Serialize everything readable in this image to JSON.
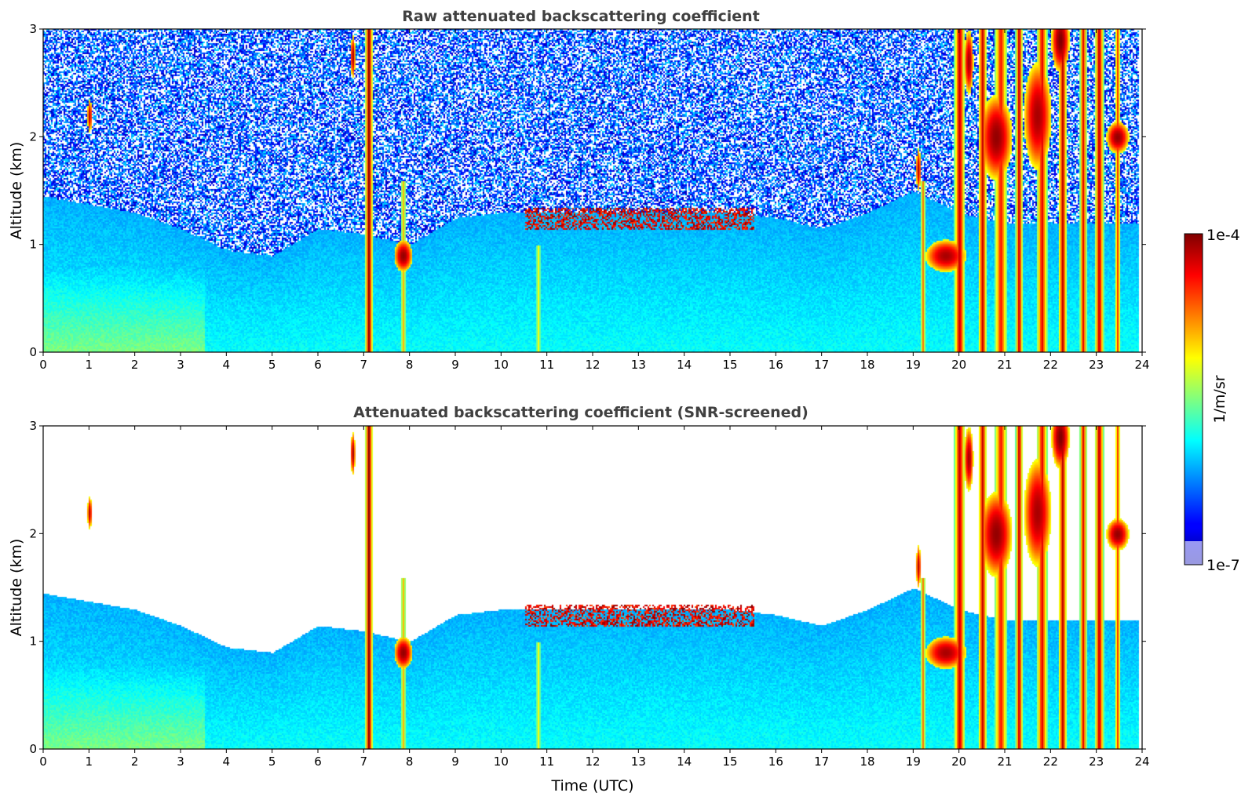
{
  "chart_data": [
    {
      "type": "heatmap",
      "title": "Raw attenuated backscattering coefficient",
      "xlabel": "",
      "ylabel": "Altitude (km)",
      "xlim": [
        0,
        24
      ],
      "ylim": [
        0,
        3
      ],
      "xticks": [
        "0",
        "1",
        "2",
        "3",
        "4",
        "5",
        "6",
        "7",
        "8",
        "9",
        "10",
        "11",
        "12",
        "13",
        "14",
        "15",
        "16",
        "17",
        "18",
        "19",
        "20",
        "21",
        "22",
        "23",
        "24"
      ],
      "yticks": [
        "0",
        "1",
        "2",
        "3"
      ],
      "screened": false
    },
    {
      "type": "heatmap",
      "title": "Attenuated backscattering coefficient (SNR-screened)",
      "xlabel": "Time (UTC)",
      "ylabel": "Altitude (km)",
      "xlim": [
        0,
        24
      ],
      "ylim": [
        0,
        3
      ],
      "xticks": [
        "0",
        "1",
        "2",
        "3",
        "4",
        "5",
        "6",
        "7",
        "8",
        "9",
        "10",
        "11",
        "12",
        "13",
        "14",
        "15",
        "16",
        "17",
        "18",
        "19",
        "20",
        "21",
        "22",
        "23",
        "24"
      ],
      "yticks": [
        "0",
        "1",
        "2",
        "3"
      ],
      "screened": true
    }
  ],
  "colorbar": {
    "label": "1/m/sr",
    "max_label": "1e-4",
    "min_label": "1e-7",
    "range": [
      1e-07,
      0.0001
    ],
    "scale": "log",
    "colormap": "jet"
  },
  "features": {
    "boundary_layer_top_km": [
      [
        0,
        1.45
      ],
      [
        2,
        1.3
      ],
      [
        3,
        1.15
      ],
      [
        4,
        0.95
      ],
      [
        5,
        0.9
      ],
      [
        6,
        1.15
      ],
      [
        7,
        1.1
      ],
      [
        8,
        1.0
      ],
      [
        9,
        1.25
      ],
      [
        10,
        1.3
      ],
      [
        11,
        1.3
      ],
      [
        12,
        1.3
      ],
      [
        13,
        1.3
      ],
      [
        14,
        1.3
      ],
      [
        15,
        1.3
      ],
      [
        16,
        1.25
      ],
      [
        17,
        1.15
      ],
      [
        18,
        1.3
      ],
      [
        19,
        1.5
      ],
      [
        20,
        1.3
      ],
      [
        21,
        1.2
      ],
      [
        22,
        1.2
      ],
      [
        23,
        1.2
      ],
      [
        24,
        1.2
      ]
    ],
    "precip_shafts_utc": [
      {
        "t": 7.1,
        "top": 3.0,
        "w": 0.09,
        "s": 1.0
      },
      {
        "t": 7.85,
        "top": 1.6,
        "w": 0.05,
        "s": 0.45
      },
      {
        "t": 10.8,
        "top": 1.0,
        "w": 0.04,
        "s": 0.3
      },
      {
        "t": 19.2,
        "top": 1.6,
        "w": 0.05,
        "s": 0.55
      },
      {
        "t": 20.0,
        "top": 3.0,
        "w": 0.12,
        "s": 0.95
      },
      {
        "t": 20.5,
        "top": 3.0,
        "w": 0.1,
        "s": 0.9
      },
      {
        "t": 20.9,
        "top": 3.0,
        "w": 0.14,
        "s": 0.8
      },
      {
        "t": 21.3,
        "top": 3.0,
        "w": 0.08,
        "s": 0.95
      },
      {
        "t": 21.8,
        "top": 3.0,
        "w": 0.12,
        "s": 0.85
      },
      {
        "t": 22.25,
        "top": 3.0,
        "w": 0.1,
        "s": 0.9
      },
      {
        "t": 22.7,
        "top": 3.0,
        "w": 0.08,
        "s": 0.85
      },
      {
        "t": 23.05,
        "top": 3.0,
        "w": 0.1,
        "s": 0.95
      },
      {
        "t": 23.45,
        "top": 3.0,
        "w": 0.06,
        "s": 0.7
      }
    ],
    "cloud_patches": [
      {
        "t": 20.8,
        "z": 2.0,
        "dt": 0.35,
        "dz": 0.4,
        "s": 0.95
      },
      {
        "t": 21.7,
        "z": 2.2,
        "dt": 0.3,
        "dz": 0.5,
        "s": 0.9
      },
      {
        "t": 22.2,
        "z": 2.9,
        "dt": 0.2,
        "dz": 0.3,
        "s": 1.0
      },
      {
        "t": 23.45,
        "z": 2.0,
        "dt": 0.25,
        "dz": 0.15,
        "s": 0.95
      },
      {
        "t": 19.7,
        "z": 0.9,
        "dt": 0.45,
        "dz": 0.15,
        "s": 0.9
      },
      {
        "t": 7.85,
        "z": 0.9,
        "dt": 0.2,
        "dz": 0.15,
        "s": 0.95
      },
      {
        "t": 6.75,
        "z": 2.75,
        "dt": 0.05,
        "dz": 0.2,
        "s": 0.9
      },
      {
        "t": 1.0,
        "z": 2.2,
        "dt": 0.05,
        "dz": 0.15,
        "s": 0.85
      },
      {
        "t": 19.1,
        "z": 1.7,
        "dt": 0.05,
        "dz": 0.2,
        "s": 0.85
      },
      {
        "t": 20.2,
        "z": 2.7,
        "dt": 0.1,
        "dz": 0.3,
        "s": 0.9
      }
    ],
    "cloud_band_utc": [
      10.5,
      15.5
    ],
    "cloud_band_km": 1.25,
    "surface_enhancement_utc": [
      0,
      3.5
    ]
  },
  "colors": {
    "title": "#404040",
    "background": "#ffffff",
    "axes": "#000000"
  }
}
